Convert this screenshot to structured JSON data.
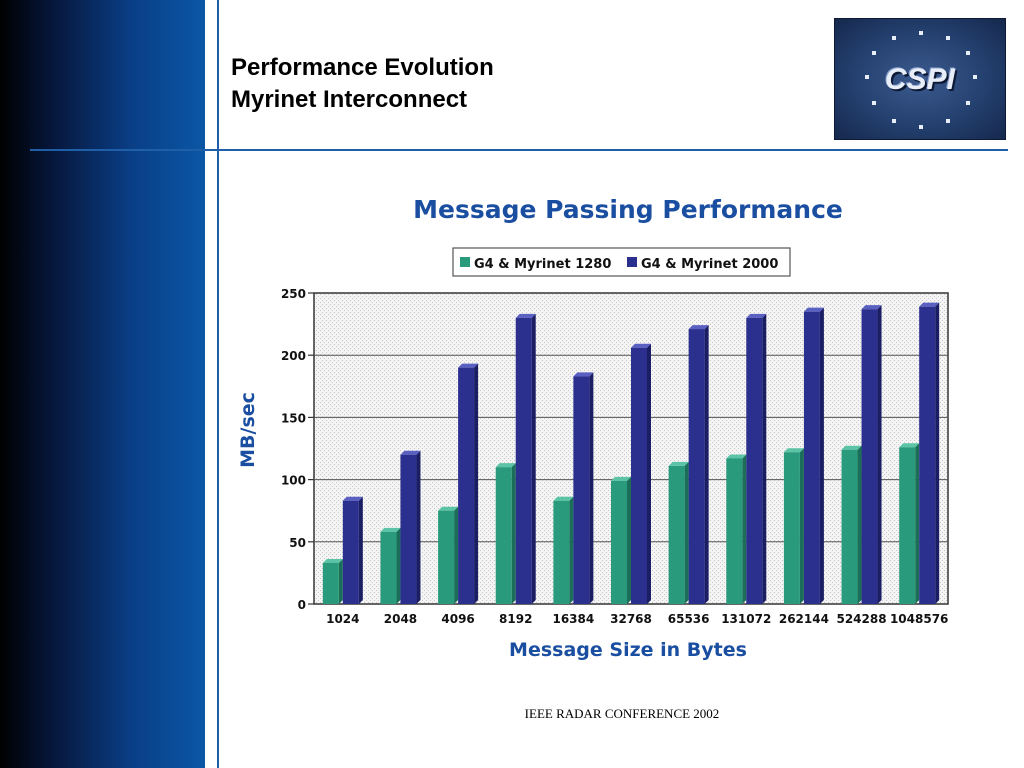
{
  "slide": {
    "title_line1": "Performance Evolution",
    "title_line2": "Myrinet Interconnect",
    "logo_text": "CSPI",
    "footer": "IEEE RADAR CONFERENCE 2002"
  },
  "colors": {
    "accent_rule": "#1f5fa8",
    "series_1280": "#2a9a7c",
    "series_2000": "#2b2f8e",
    "chart_title": "#1a4ea0"
  },
  "chart_data": {
    "type": "bar",
    "title": "Message Passing Performance",
    "xlabel": "Message Size in Bytes",
    "ylabel": "MB/sec",
    "ylim": [
      0,
      250
    ],
    "yticks": [
      0,
      50,
      100,
      150,
      200,
      250
    ],
    "legend_position": "top",
    "grid": true,
    "categories": [
      "1024",
      "2048",
      "4096",
      "8192",
      "16384",
      "32768",
      "65536",
      "131072",
      "262144",
      "524288",
      "1048576"
    ],
    "series": [
      {
        "name": "G4 & Myrinet 1280",
        "color": "#2a9a7c",
        "values": [
          33,
          58,
          75,
          110,
          83,
          99,
          111,
          117,
          122,
          124,
          126
        ]
      },
      {
        "name": "G4 & Myrinet 2000",
        "color": "#2b2f8e",
        "values": [
          83,
          120,
          190,
          230,
          183,
          206,
          221,
          230,
          235,
          237,
          239
        ]
      }
    ]
  }
}
